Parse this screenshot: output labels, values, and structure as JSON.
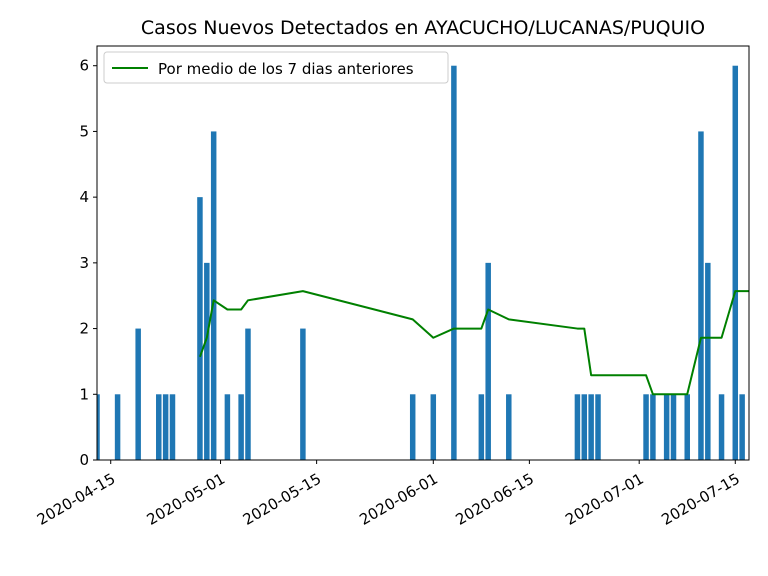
{
  "chart_data": {
    "type": "bar",
    "title": "Casos Nuevos Detectados en AYACUCHO/LUCANAS/PUQUIO",
    "xlabel": "",
    "ylabel": "",
    "x_range": [
      "2020-04-13",
      "2020-07-17"
    ],
    "ylim": [
      0,
      6.3
    ],
    "yticks": [
      0,
      1,
      2,
      3,
      4,
      5,
      6
    ],
    "xticks": [
      "2020-04-15",
      "2020-05-01",
      "2020-05-15",
      "2020-06-01",
      "2020-06-15",
      "2020-07-01",
      "2020-07-15"
    ],
    "grid": false,
    "legend_position": "top-left",
    "bars": {
      "color": "#1f77b4",
      "dates": [
        "2020-04-13",
        "2020-04-16",
        "2020-04-19",
        "2020-04-22",
        "2020-04-23",
        "2020-04-24",
        "2020-04-28",
        "2020-04-29",
        "2020-04-30",
        "2020-05-02",
        "2020-05-04",
        "2020-05-05",
        "2020-05-13",
        "2020-05-29",
        "2020-06-01",
        "2020-06-04",
        "2020-06-08",
        "2020-06-09",
        "2020-06-12",
        "2020-06-22",
        "2020-06-23",
        "2020-06-24",
        "2020-06-25",
        "2020-07-02",
        "2020-07-03",
        "2020-07-05",
        "2020-07-06",
        "2020-07-08",
        "2020-07-10",
        "2020-07-11",
        "2020-07-13",
        "2020-07-15",
        "2020-07-16"
      ],
      "values": [
        1,
        1,
        2,
        1,
        1,
        1,
        4,
        3,
        5,
        1,
        1,
        2,
        2,
        1,
        1,
        6,
        1,
        3,
        1,
        1,
        1,
        1,
        1,
        1,
        1,
        1,
        1,
        1,
        5,
        3,
        1,
        6,
        1
      ]
    },
    "line": {
      "name": "Por medio de los 7 dias anteriores",
      "color": "#008000",
      "dates": [
        "2020-04-28",
        "2020-04-29",
        "2020-04-30",
        "2020-05-02",
        "2020-05-04",
        "2020-05-05",
        "2020-05-13",
        "2020-05-29",
        "2020-06-01",
        "2020-06-04",
        "2020-06-08",
        "2020-06-09",
        "2020-06-12",
        "2020-06-22",
        "2020-06-23",
        "2020-06-24",
        "2020-07-02",
        "2020-07-03",
        "2020-07-05",
        "2020-07-06",
        "2020-07-08",
        "2020-07-10",
        "2020-07-11",
        "2020-07-13",
        "2020-07-15",
        "2020-07-16",
        "2020-07-17"
      ],
      "values": [
        1.57,
        1.86,
        2.43,
        2.29,
        2.29,
        2.43,
        2.57,
        2.14,
        1.86,
        2.0,
        2.0,
        2.29,
        2.14,
        2.0,
        2.0,
        1.29,
        1.29,
        1.0,
        1.0,
        1.0,
        1.0,
        1.86,
        1.86,
        1.86,
        2.57,
        2.57,
        2.57
      ]
    }
  }
}
